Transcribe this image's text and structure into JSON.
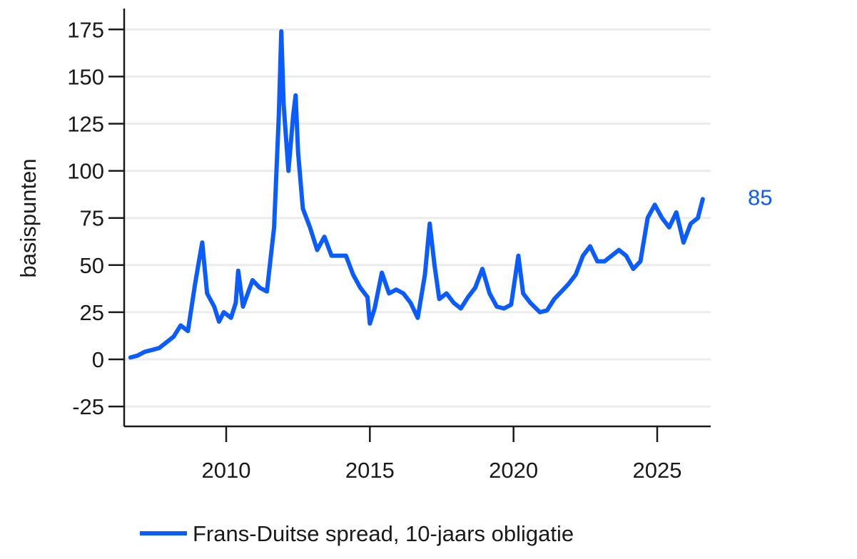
{
  "chart_data": {
    "type": "line",
    "title": "",
    "xlabel": "",
    "ylabel": "basispunten",
    "ylim": [
      -35,
      185
    ],
    "xlim": [
      "2006-09",
      "2026-10"
    ],
    "yticks": [
      -25,
      0,
      25,
      50,
      75,
      100,
      125,
      150,
      175
    ],
    "ytick_labels": [
      "-25",
      "0",
      "25",
      "50",
      "75",
      "100",
      "125",
      "150",
      "175"
    ],
    "xticks": [
      "2010-01",
      "2015-01",
      "2020-01",
      "2025-01"
    ],
    "xtick_labels": [
      "2010",
      "2015",
      "2020",
      "2025"
    ],
    "grid": "horizontal",
    "legend_position": "bottom",
    "line_color": "#0a5cff",
    "series": [
      {
        "name": "Frans-Duitse spread, 10-jaars obligatie",
        "end_label": "85",
        "points": [
          [
            "2006-09",
            1
          ],
          [
            "2006-12",
            2
          ],
          [
            "2007-03",
            4
          ],
          [
            "2007-06",
            5
          ],
          [
            "2007-09",
            6
          ],
          [
            "2007-12",
            9
          ],
          [
            "2008-03",
            12
          ],
          [
            "2008-06",
            18
          ],
          [
            "2008-09",
            15
          ],
          [
            "2008-12",
            40
          ],
          [
            "2009-02",
            55
          ],
          [
            "2009-03",
            62
          ],
          [
            "2009-05",
            35
          ],
          [
            "2009-08",
            28
          ],
          [
            "2009-10",
            20
          ],
          [
            "2009-12",
            25
          ],
          [
            "2010-03",
            22
          ],
          [
            "2010-05",
            30
          ],
          [
            "2010-06",
            47
          ],
          [
            "2010-08",
            28
          ],
          [
            "2010-10",
            35
          ],
          [
            "2010-12",
            42
          ],
          [
            "2011-03",
            38
          ],
          [
            "2011-06",
            36
          ],
          [
            "2011-09",
            70
          ],
          [
            "2011-11",
            130
          ],
          [
            "2011-12",
            174
          ],
          [
            "2012-01",
            135
          ],
          [
            "2012-03",
            100
          ],
          [
            "2012-05",
            130
          ],
          [
            "2012-06",
            140
          ],
          [
            "2012-07",
            110
          ],
          [
            "2012-09",
            80
          ],
          [
            "2012-12",
            70
          ],
          [
            "2013-03",
            58
          ],
          [
            "2013-06",
            65
          ],
          [
            "2013-09",
            55
          ],
          [
            "2013-12",
            55
          ],
          [
            "2014-03",
            55
          ],
          [
            "2014-06",
            45
          ],
          [
            "2014-09",
            38
          ],
          [
            "2014-12",
            33
          ],
          [
            "2015-01",
            19
          ],
          [
            "2015-03",
            27
          ],
          [
            "2015-06",
            46
          ],
          [
            "2015-09",
            35
          ],
          [
            "2015-12",
            37
          ],
          [
            "2016-03",
            35
          ],
          [
            "2016-06",
            30
          ],
          [
            "2016-09",
            22
          ],
          [
            "2016-12",
            45
          ],
          [
            "2017-02",
            72
          ],
          [
            "2017-04",
            50
          ],
          [
            "2017-06",
            32
          ],
          [
            "2017-09",
            35
          ],
          [
            "2017-12",
            30
          ],
          [
            "2018-03",
            27
          ],
          [
            "2018-06",
            33
          ],
          [
            "2018-09",
            38
          ],
          [
            "2018-12",
            48
          ],
          [
            "2019-03",
            35
          ],
          [
            "2019-06",
            28
          ],
          [
            "2019-09",
            27
          ],
          [
            "2019-12",
            29
          ],
          [
            "2020-03",
            55
          ],
          [
            "2020-05",
            35
          ],
          [
            "2020-08",
            30
          ],
          [
            "2020-12",
            25
          ],
          [
            "2021-03",
            26
          ],
          [
            "2021-06",
            32
          ],
          [
            "2021-09",
            36
          ],
          [
            "2021-12",
            40
          ],
          [
            "2022-03",
            45
          ],
          [
            "2022-06",
            55
          ],
          [
            "2022-09",
            60
          ],
          [
            "2022-12",
            52
          ],
          [
            "2023-03",
            52
          ],
          [
            "2023-06",
            55
          ],
          [
            "2023-09",
            58
          ],
          [
            "2023-12",
            55
          ],
          [
            "2024-03",
            48
          ],
          [
            "2024-06",
            52
          ],
          [
            "2024-09",
            75
          ],
          [
            "2024-12",
            82
          ],
          [
            "2025-03",
            75
          ],
          [
            "2025-06",
            70
          ],
          [
            "2025-09",
            78
          ],
          [
            "2025-12",
            62
          ],
          [
            "2026-03",
            72
          ],
          [
            "2026-06",
            75
          ],
          [
            "2026-08",
            85
          ]
        ]
      }
    ]
  }
}
